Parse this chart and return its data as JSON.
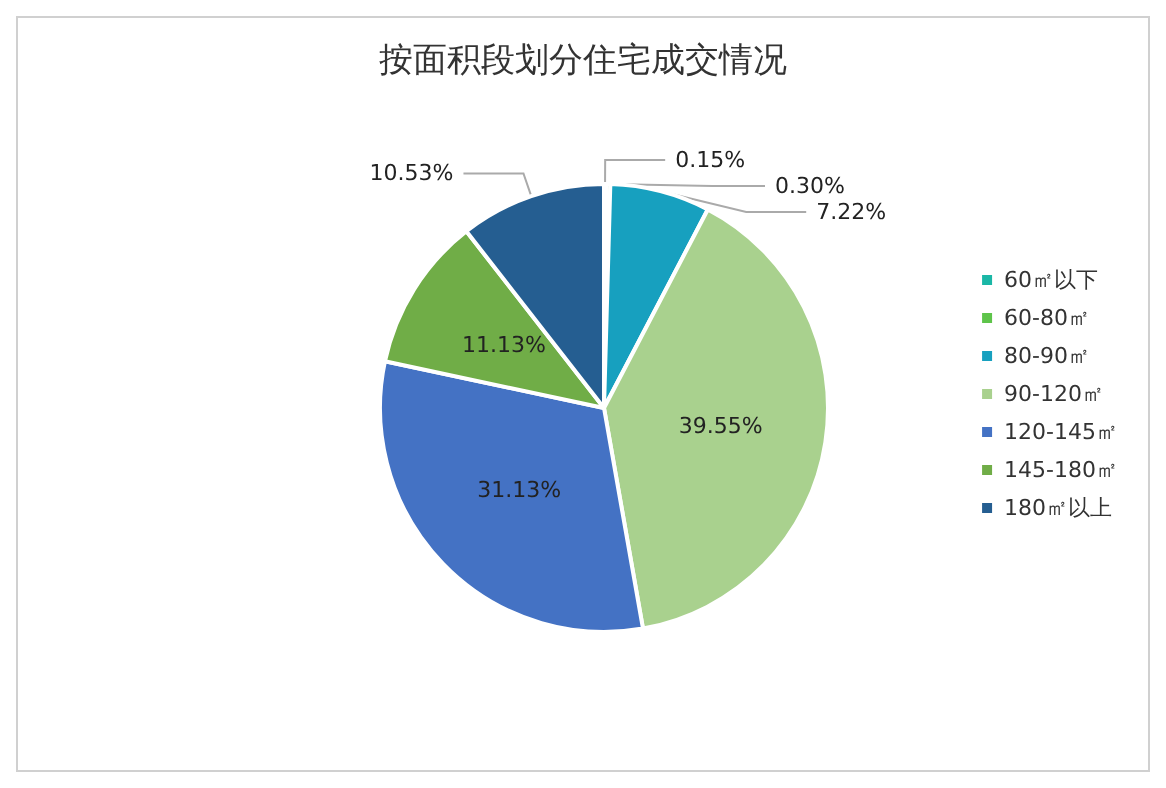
{
  "chart_data": {
    "type": "pie",
    "title": "按面积段划分住宅成交情况",
    "categories": [
      "60㎡以下",
      "60-80㎡",
      "80-90㎡",
      "90-120㎡",
      "120-145㎡",
      "145-180㎡",
      "180㎡以上"
    ],
    "values": [
      0.15,
      0.3,
      7.22,
      39.55,
      31.13,
      11.13,
      10.53
    ],
    "colors": [
      "#1bb7a6",
      "#5ec44a",
      "#17a0bf",
      "#a9d18e",
      "#4472c4",
      "#70ad47",
      "#255e91"
    ],
    "value_labels": [
      "0.15%",
      "0.30%",
      "7.22%",
      "39.55%",
      "31.13%",
      "11.13%",
      "10.53%"
    ],
    "legend": "right"
  }
}
